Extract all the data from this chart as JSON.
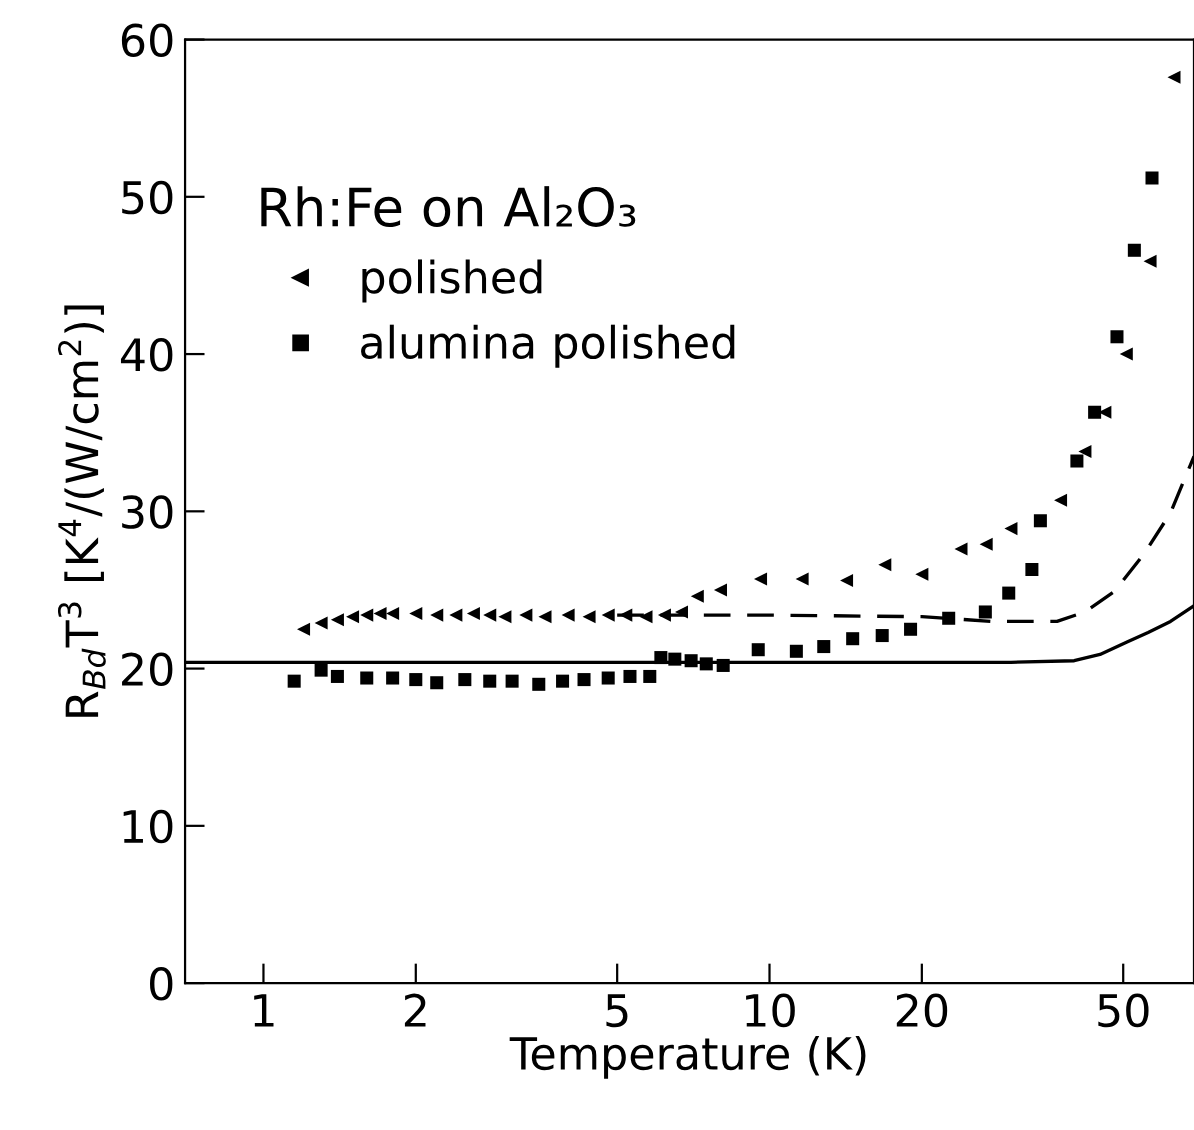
{
  "chart_data": {
    "type": "scatter",
    "xlabel": "Temperature (K)",
    "ylabel": "R$_{Bd}$T$^{3}$ [K$^{4}$/(W/cm$^{2}$)]",
    "legend_title": "Rh:Fe on Al₂O₃",
    "legend": "top left",
    "log": "x",
    "grid": false,
    "xlim": [
      0.7,
      69
    ],
    "xticks": [
      1,
      2,
      5,
      10,
      20,
      50
    ],
    "ylim": [
      0,
      60
    ],
    "yticks": [
      0,
      10,
      20,
      30,
      40,
      50,
      60
    ],
    "series": [
      {
        "name": "polished",
        "marker": "triangle",
        "color": "#000000",
        "x": [
          1.2,
          1.3,
          1.4,
          1.5,
          1.6,
          1.7,
          1.8,
          2.0,
          2.2,
          2.4,
          2.6,
          2.8,
          3.0,
          3.3,
          3.6,
          4.0,
          4.4,
          4.8,
          5.2,
          5.7,
          6.2,
          6.7,
          7.2,
          8.0,
          9.6,
          11.6,
          14.2,
          16.9,
          20.0,
          23.9,
          26.8,
          30.0,
          37.6,
          42.0,
          46.0,
          50.7,
          56.5,
          63.0
        ],
        "values": [
          22.5,
          22.9,
          23.1,
          23.3,
          23.4,
          23.5,
          23.5,
          23.5,
          23.4,
          23.4,
          23.5,
          23.4,
          23.3,
          23.4,
          23.3,
          23.4,
          23.3,
          23.4,
          23.4,
          23.3,
          23.4,
          23.6,
          24.6,
          25.0,
          25.7,
          25.7,
          25.6,
          26.6,
          26.0,
          27.6,
          27.9,
          28.9,
          30.7,
          33.8,
          36.3,
          40.0,
          45.9,
          57.6
        ]
      },
      {
        "name": "alumina polished",
        "marker": "square",
        "color": "#000000",
        "x": [
          1.15,
          1.3,
          1.4,
          1.6,
          1.8,
          2.0,
          2.2,
          2.5,
          2.8,
          3.1,
          3.5,
          3.9,
          4.3,
          4.8,
          5.3,
          5.8,
          6.1,
          6.5,
          7.0,
          7.5,
          8.1,
          9.5,
          11.3,
          12.8,
          14.6,
          16.7,
          19.0,
          22.6,
          26.7,
          29.7,
          33.0,
          34.3,
          40.5,
          43.9,
          48.6,
          52.6,
          57.0
        ],
        "values": [
          19.2,
          19.9,
          19.5,
          19.4,
          19.4,
          19.3,
          19.1,
          19.3,
          19.2,
          19.2,
          19.0,
          19.2,
          19.3,
          19.4,
          19.5,
          19.5,
          20.7,
          20.6,
          20.5,
          20.3,
          20.2,
          21.2,
          21.1,
          21.4,
          21.9,
          22.1,
          22.5,
          23.2,
          23.6,
          24.8,
          26.3,
          29.4,
          33.2,
          36.3,
          41.1,
          46.6,
          51.2
        ]
      },
      {
        "type": "line",
        "line_style": "solid",
        "color": "#000000",
        "x": [
          0.7,
          10,
          30,
          40,
          45,
          51,
          56,
          62,
          69
        ],
        "values": [
          20.4,
          20.4,
          20.4,
          20.5,
          20.9,
          21.7,
          22.3,
          23.0,
          24.0
        ]
      },
      {
        "type": "line",
        "line_style": "dashed",
        "color": "#000000",
        "x": [
          5,
          10,
          20,
          27.5,
          37,
          42,
          48,
          55,
          62,
          69
        ],
        "values": [
          23.4,
          23.4,
          23.3,
          23.0,
          23.0,
          23.6,
          24.9,
          27.3,
          29.9,
          33.5
        ]
      }
    ]
  }
}
